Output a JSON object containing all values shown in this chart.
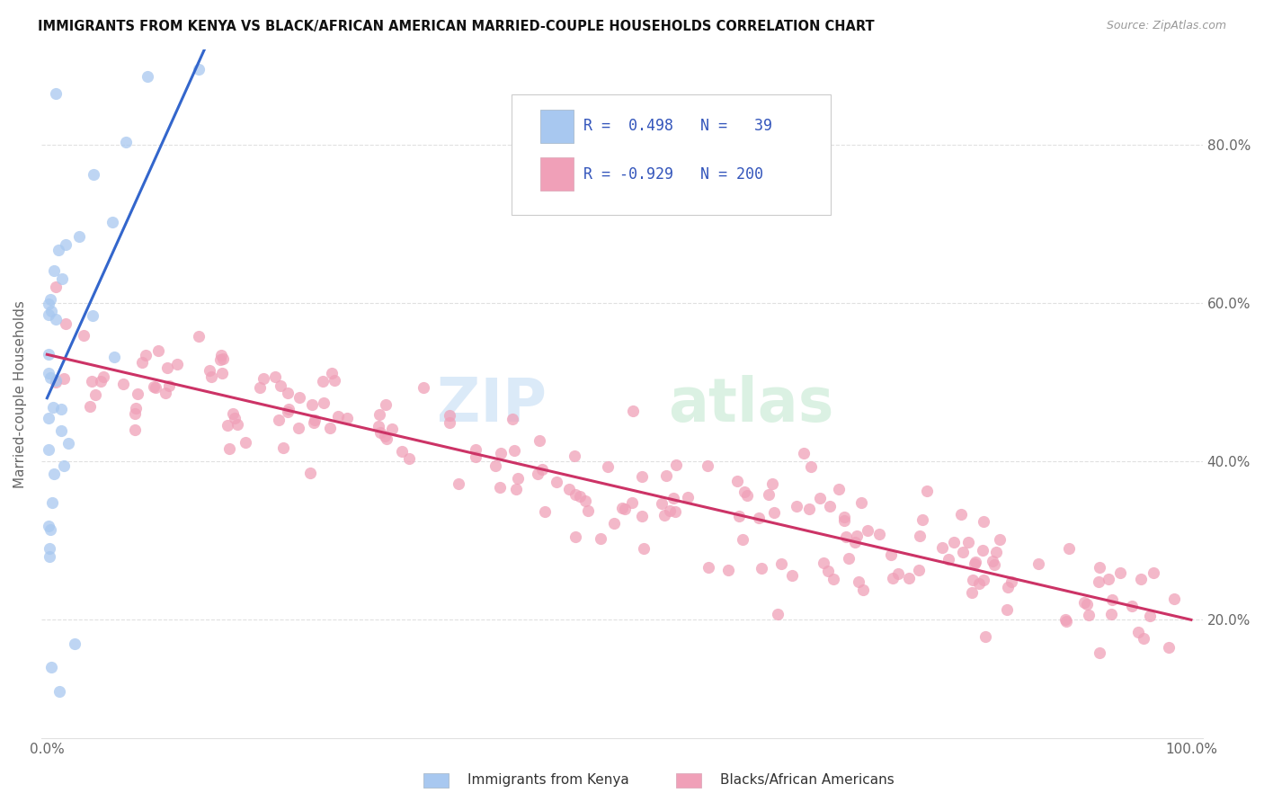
{
  "title": "IMMIGRANTS FROM KENYA VS BLACK/AFRICAN AMERICAN MARRIED-COUPLE HOUSEHOLDS CORRELATION CHART",
  "source": "Source: ZipAtlas.com",
  "ylabel": "Married-couple Households",
  "legend_label1": "Immigrants from Kenya",
  "legend_label2": "Blacks/African Americans",
  "R1": "0.498",
  "N1": "39",
  "R2": "-0.929",
  "N2": "200",
  "blue_color": "#a8c8f0",
  "blue_line_color": "#3366cc",
  "pink_color": "#f0a0b8",
  "pink_line_color": "#cc3366",
  "dash_color": "#c0d0e8",
  "watermark_zip_color": "#d8e8f8",
  "watermark_atlas_color": "#d8f0e0",
  "bg_color": "#ffffff",
  "grid_color": "#e0e0e0",
  "tick_color": "#666666",
  "title_color": "#111111",
  "source_color": "#999999",
  "legend_text_color": "#3355bb",
  "xlim": [
    -0.005,
    1.01
  ],
  "ylim": [
    0.05,
    0.92
  ],
  "yticks": [
    0.2,
    0.4,
    0.6,
    0.8
  ],
  "ytick_labels": [
    "20.0%",
    "40.0%",
    "60.0%",
    "80.0%"
  ],
  "xtick_labels": [
    "0.0%",
    "100.0%"
  ],
  "blue_intercept": 0.48,
  "blue_slope": 3.2,
  "blue_line_xstart": 0.0,
  "blue_line_xend": 0.14,
  "blue_dash_xstart": 0.0,
  "blue_dash_xend": 0.4,
  "pink_intercept": 0.535,
  "pink_slope": -0.335,
  "pink_line_xstart": 0.0,
  "pink_line_xend": 1.0,
  "blue_seed": 42,
  "pink_seed": 99,
  "n_blue": 39,
  "n_pink": 200
}
